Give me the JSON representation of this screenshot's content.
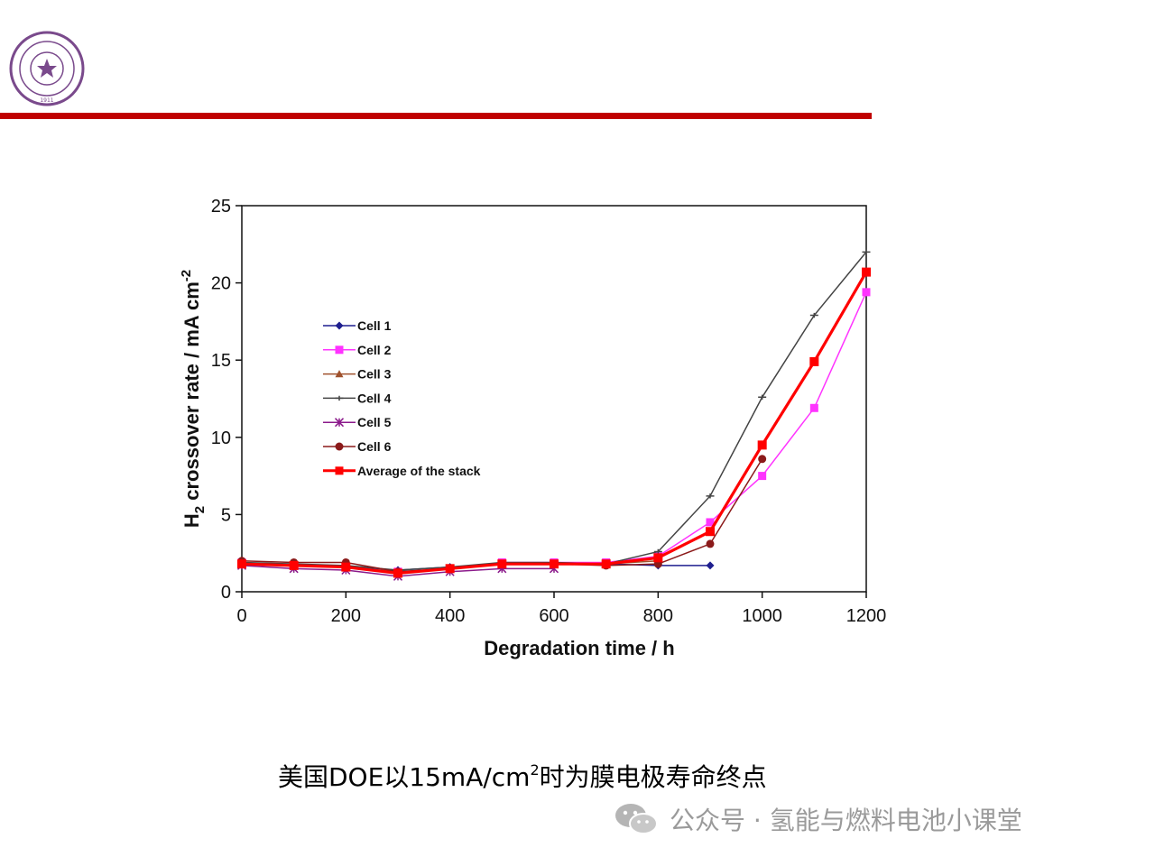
{
  "chart_data": {
    "type": "line",
    "xlabel": "Degradation time / h",
    "ylabel": "H2 crossover rate / mA cm-2",
    "ylabel_parts": {
      "main": "H",
      "sub": "2",
      "rest": " crossover rate / mA cm",
      "sup": "-2"
    },
    "xlim": [
      0,
      1200
    ],
    "ylim": [
      0,
      25
    ],
    "xticks": [
      "0",
      "200",
      "400",
      "600",
      "800",
      "1000",
      "1200"
    ],
    "yticks": [
      "0",
      "5",
      "10",
      "15",
      "20",
      "25"
    ],
    "grid": false,
    "legend_position": "left-middle",
    "series": [
      {
        "name": "Cell 1",
        "color": "#1f1f8f",
        "marker": "diamond",
        "x": [
          0,
          100,
          200,
          300,
          400,
          500,
          600,
          700,
          800,
          900
        ],
        "y": [
          1.8,
          1.7,
          1.6,
          1.4,
          1.6,
          1.8,
          1.8,
          1.8,
          1.7,
          1.7
        ]
      },
      {
        "name": "Cell 2",
        "color": "#ff33ff",
        "marker": "square",
        "x": [
          0,
          100,
          200,
          300,
          400,
          500,
          600,
          700,
          800,
          900,
          1000,
          1100,
          1200
        ],
        "y": [
          1.9,
          1.7,
          1.6,
          1.3,
          1.5,
          1.9,
          1.9,
          1.9,
          2.3,
          4.5,
          7.5,
          11.9,
          19.4
        ]
      },
      {
        "name": "Cell 3",
        "color": "#a0522d",
        "marker": "triangle",
        "x": [
          0,
          100,
          200,
          300,
          400,
          500,
          600,
          700,
          800
        ],
        "y": [
          1.8,
          1.7,
          1.6,
          1.3,
          1.5,
          1.8,
          1.8,
          1.8,
          2.0
        ]
      },
      {
        "name": "Cell 4",
        "color": "#444444",
        "marker": "cross",
        "x": [
          0,
          100,
          200,
          300,
          400,
          500,
          600,
          700,
          800,
          900,
          1000,
          1100,
          1200
        ],
        "y": [
          1.9,
          1.8,
          1.7,
          1.4,
          1.6,
          1.9,
          1.9,
          1.8,
          2.6,
          6.2,
          12.6,
          17.9,
          22.0
        ]
      },
      {
        "name": "Cell 5",
        "color": "#8b1a8b",
        "marker": "asterisk",
        "x": [
          0,
          100,
          200,
          300,
          400,
          500,
          600
        ],
        "y": [
          1.7,
          1.5,
          1.4,
          1.0,
          1.3,
          1.5,
          1.5
        ]
      },
      {
        "name": "Cell 6",
        "color": "#8b1a1a",
        "marker": "circle",
        "x": [
          0,
          100,
          200,
          300,
          400,
          500,
          600,
          700,
          800,
          900,
          1000
        ],
        "y": [
          2.0,
          1.9,
          1.9,
          1.3,
          1.5,
          1.8,
          1.8,
          1.7,
          1.8,
          3.1,
          8.6
        ]
      },
      {
        "name": "Average of the stack",
        "color": "#ff0000",
        "marker": "square",
        "x": [
          0,
          100,
          200,
          300,
          400,
          500,
          600,
          700,
          800,
          900,
          1000,
          1100,
          1200
        ],
        "y": [
          1.8,
          1.7,
          1.6,
          1.2,
          1.5,
          1.8,
          1.8,
          1.8,
          2.2,
          3.9,
          9.5,
          14.9,
          20.7
        ]
      }
    ]
  },
  "caption": {
    "before": "美国DOE以15mA/cm",
    "sup": "2",
    "after": "时为膜电极寿命终点"
  },
  "watermark": {
    "text": "公众号 · 氢能与燃料电池小课堂",
    "icon": "wechat-icon"
  },
  "logo": {
    "icon": "university-seal-icon",
    "color": "#7a4a8c",
    "year": "1911"
  },
  "divider": {
    "color": "#c00000"
  }
}
